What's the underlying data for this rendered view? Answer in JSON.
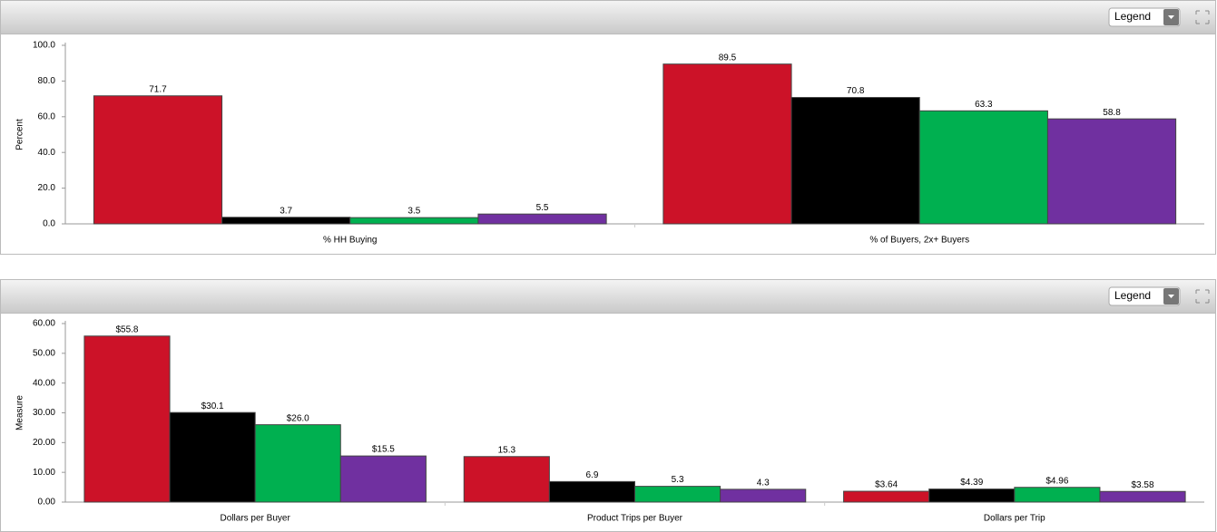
{
  "ui": {
    "legend_buttons": [
      "Legend",
      "Legend"
    ]
  },
  "chart_data": [
    {
      "type": "bar",
      "ylabel": "Percent",
      "categories": [
        "% HH Buying",
        "% of Buyers, 2x+ Buyers"
      ],
      "series": [
        {
          "color": "#cc1228",
          "values": [
            71.7,
            89.5
          ]
        },
        {
          "color": "#000000",
          "values": [
            3.7,
            70.8
          ]
        },
        {
          "color": "#00b050",
          "values": [
            3.5,
            63.3
          ]
        },
        {
          "color": "#7030a0",
          "values": [
            5.5,
            58.8
          ]
        }
      ],
      "ylim": [
        0,
        100
      ],
      "yticks": [
        {
          "value": 0,
          "label": "0.0"
        },
        {
          "value": 20,
          "label": "20.0"
        },
        {
          "value": 40,
          "label": "40.0"
        },
        {
          "value": 60,
          "label": "60.0"
        },
        {
          "value": 80,
          "label": "80.0"
        },
        {
          "value": 100,
          "label": "100.0"
        }
      ]
    },
    {
      "type": "bar",
      "ylabel": "Measure",
      "categories": [
        "Dollars per Buyer",
        "Product Trips per Buyer",
        "Dollars per Trip"
      ],
      "series": [
        {
          "color": "#cc1228",
          "values": [
            55.8,
            15.3,
            3.64
          ],
          "value_labels": [
            "$55.8",
            "15.3",
            "$3.64"
          ]
        },
        {
          "color": "#000000",
          "values": [
            30.1,
            6.9,
            4.39
          ],
          "value_labels": [
            "$30.1",
            "6.9",
            "$4.39"
          ]
        },
        {
          "color": "#00b050",
          "values": [
            26.0,
            5.3,
            4.96
          ],
          "value_labels": [
            "$26.0",
            "5.3",
            "$4.96"
          ]
        },
        {
          "color": "#7030a0",
          "values": [
            15.5,
            4.3,
            3.58
          ],
          "value_labels": [
            "$15.5",
            "4.3",
            "$3.58"
          ]
        }
      ],
      "ylim": [
        0,
        60
      ],
      "yticks": [
        {
          "value": 0,
          "label": "0.00"
        },
        {
          "value": 10,
          "label": "10.00"
        },
        {
          "value": 20,
          "label": "20.00"
        },
        {
          "value": 30,
          "label": "30.00"
        },
        {
          "value": 40,
          "label": "40.00"
        },
        {
          "value": 50,
          "label": "50.00"
        },
        {
          "value": 60,
          "label": "60.00"
        }
      ]
    }
  ]
}
